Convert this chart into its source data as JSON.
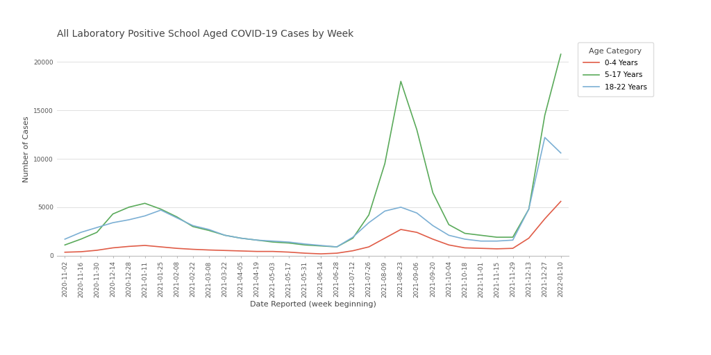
{
  "title": "All Laboratory Positive School Aged COVID-19 Cases by Week",
  "xlabel": "Date Reported (week beginning)",
  "ylabel": "Number of Cases",
  "legend_title": "Age Category",
  "background_color": "#ffffff",
  "plot_bg_color": "#ffffff",
  "dates": [
    "2020-11-02",
    "2020-11-16",
    "2020-11-30",
    "2020-12-14",
    "2020-12-28",
    "2021-01-11",
    "2021-01-25",
    "2021-02-08",
    "2021-02-22",
    "2021-03-08",
    "2021-03-22",
    "2021-04-05",
    "2021-04-19",
    "2021-05-03",
    "2021-05-17",
    "2021-05-31",
    "2021-06-14",
    "2021-06-28",
    "2021-07-12",
    "2021-07-26",
    "2021-08-09",
    "2021-08-23",
    "2021-09-06",
    "2021-09-20",
    "2021-10-04",
    "2021-10-18",
    "2021-11-01",
    "2021-11-15",
    "2021-11-29",
    "2021-12-13",
    "2021-12-27",
    "2022-01-10"
  ],
  "series": {
    "0-4 Years": {
      "color": "#e05c47",
      "values": [
        350,
        400,
        550,
        800,
        950,
        1050,
        900,
        750,
        650,
        580,
        530,
        480,
        430,
        430,
        360,
        250,
        180,
        250,
        500,
        900,
        1800,
        2700,
        2400,
        1700,
        1100,
        800,
        750,
        700,
        750,
        1800,
        3800,
        5600
      ]
    },
    "5-17 Years": {
      "color": "#5aaa5a",
      "values": [
        1100,
        1700,
        2400,
        4300,
        5000,
        5400,
        4800,
        4000,
        3000,
        2600,
        2100,
        1800,
        1600,
        1400,
        1300,
        1100,
        1000,
        900,
        1800,
        4200,
        9500,
        18000,
        13000,
        6500,
        3200,
        2300,
        2100,
        1900,
        1900,
        4800,
        14500,
        20800
      ]
    },
    "18-22 Years": {
      "color": "#7bafd4",
      "values": [
        1700,
        2400,
        2900,
        3400,
        3700,
        4100,
        4700,
        3900,
        3100,
        2700,
        2100,
        1800,
        1600,
        1500,
        1400,
        1200,
        1050,
        900,
        1900,
        3400,
        4600,
        5000,
        4400,
        3100,
        2100,
        1700,
        1500,
        1500,
        1600,
        4800,
        12200,
        10600
      ]
    }
  },
  "ylim": [
    0,
    22000
  ],
  "yticks": [
    0,
    5000,
    10000,
    15000,
    20000
  ],
  "title_fontsize": 10,
  "axis_label_fontsize": 8,
  "tick_fontsize": 6.5,
  "legend_fontsize": 7.5,
  "legend_title_fontsize": 8,
  "line_width": 1.2
}
